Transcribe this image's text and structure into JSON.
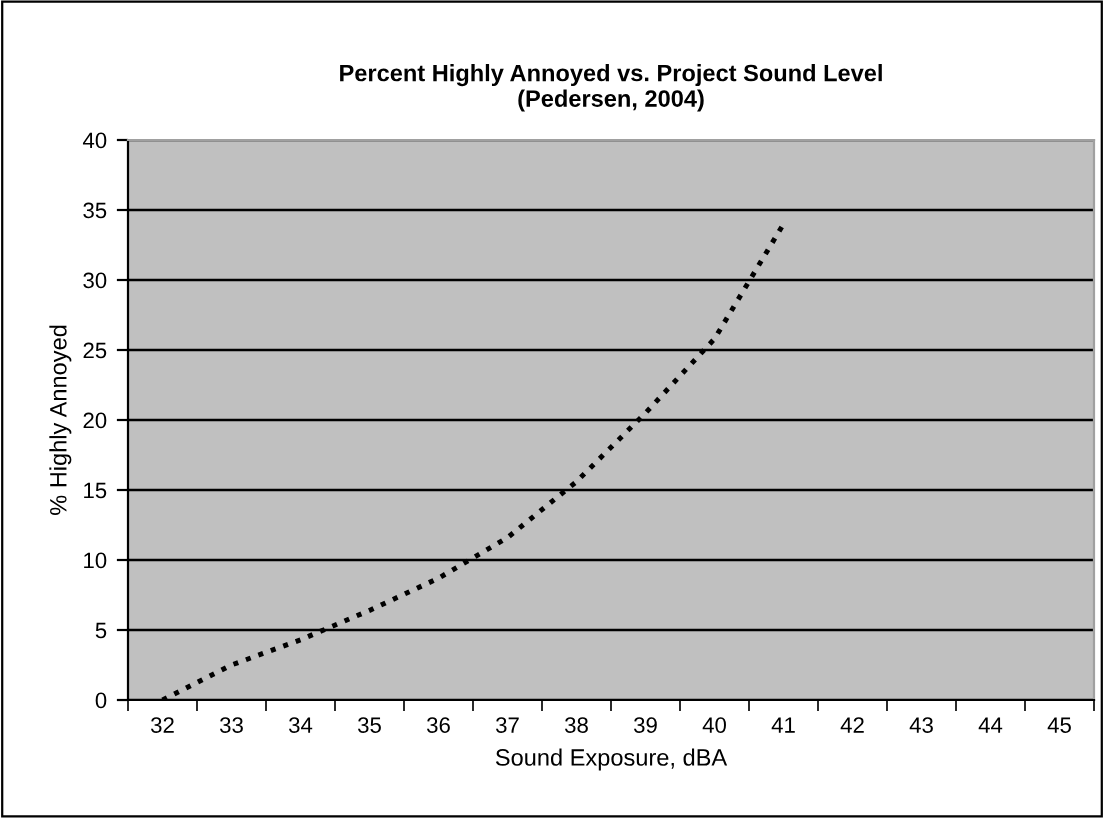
{
  "chart_data": {
    "type": "line",
    "title": "Percent Highly Annoyed vs. Project Sound Level\n(Pedersen, 2004)",
    "xlabel": "Sound Exposure, dBA",
    "ylabel": "% Highly Annoyed",
    "categories": [
      "32",
      "33",
      "34",
      "35",
      "36",
      "37",
      "38",
      "39",
      "40",
      "41",
      "42",
      "43",
      "44",
      "45"
    ],
    "series": [
      {
        "color": "#000000",
        "values": [
          0,
          2.5,
          4.3,
          6.4,
          8.7,
          11.6,
          15.6,
          20.5,
          25.8,
          34,
          null,
          null,
          null,
          null
        ]
      }
    ],
    "ylim": [
      0,
      40
    ],
    "yticks": [
      0,
      5,
      10,
      15,
      20,
      25,
      30,
      35,
      40
    ],
    "grid": "y",
    "line_style": "dotted",
    "marker": "none",
    "legend": false
  }
}
